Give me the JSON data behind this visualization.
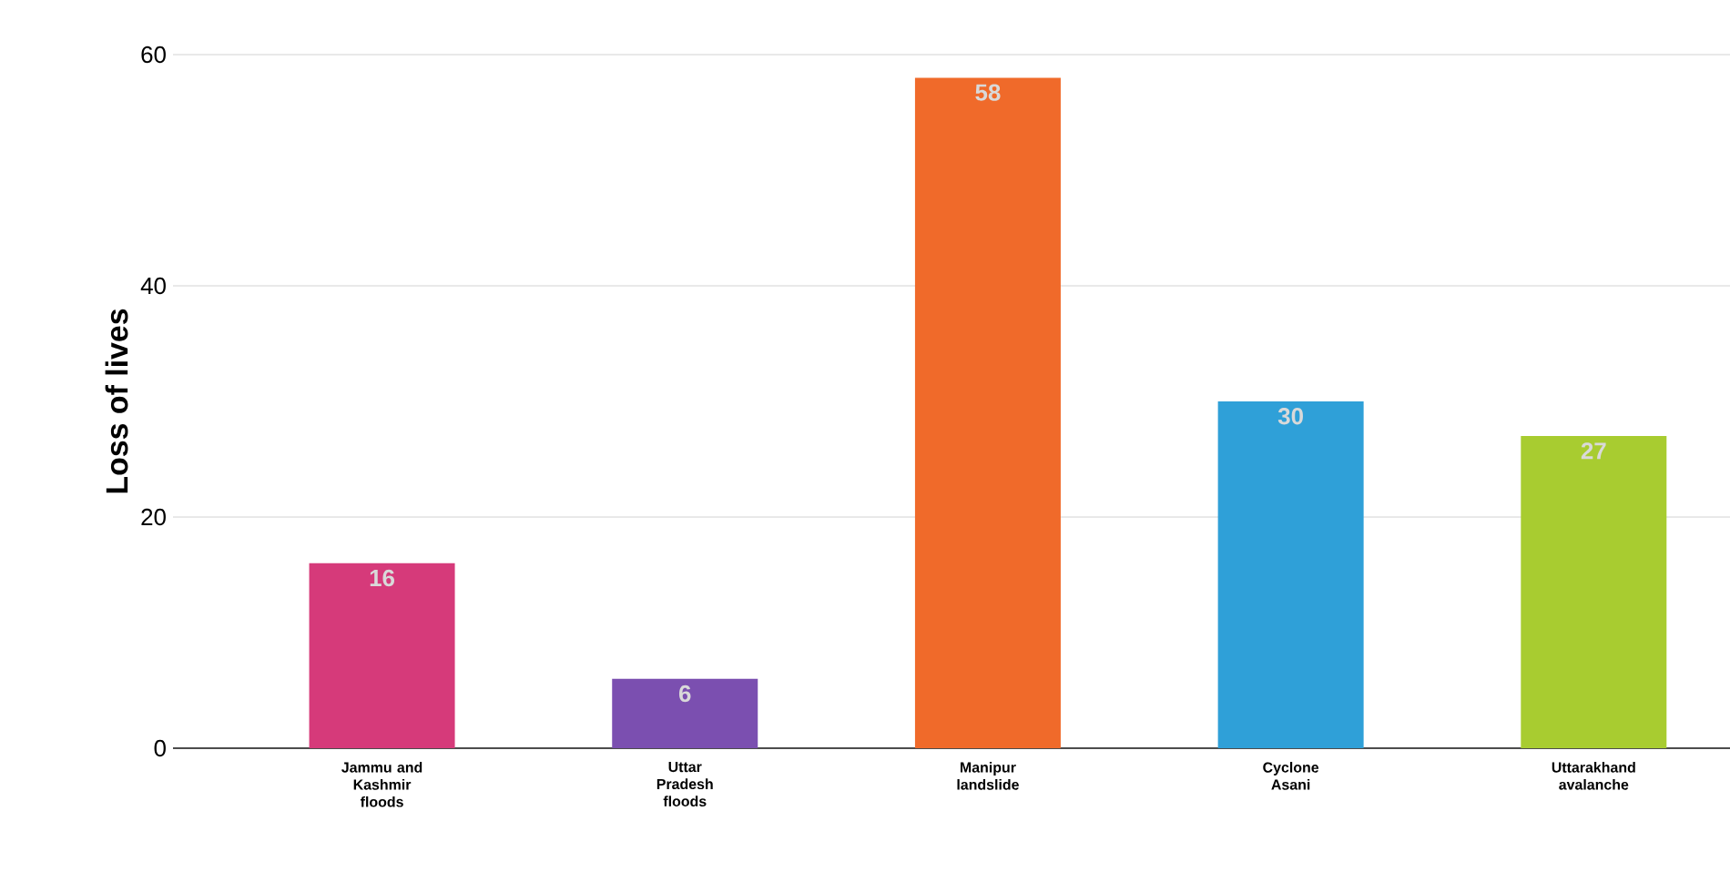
{
  "chart_data": {
    "type": "bar",
    "ylabel": "Loss of lives",
    "categories": [
      "Jammu and Kashmir floods",
      "Uttar Pradesh floods",
      "Manipur landslide",
      "Cyclone Asani",
      "Uttarakhand avalanche"
    ],
    "values": [
      16,
      6,
      58,
      30,
      27
    ],
    "colors": [
      "#d63a7a",
      "#7b4fb0",
      "#f06a2a",
      "#2fa0d8",
      "#a8cc30"
    ],
    "ylim": [
      0,
      60
    ],
    "yticks": [
      0,
      20,
      40,
      60
    ],
    "grid": "y",
    "data_labels": true
  }
}
